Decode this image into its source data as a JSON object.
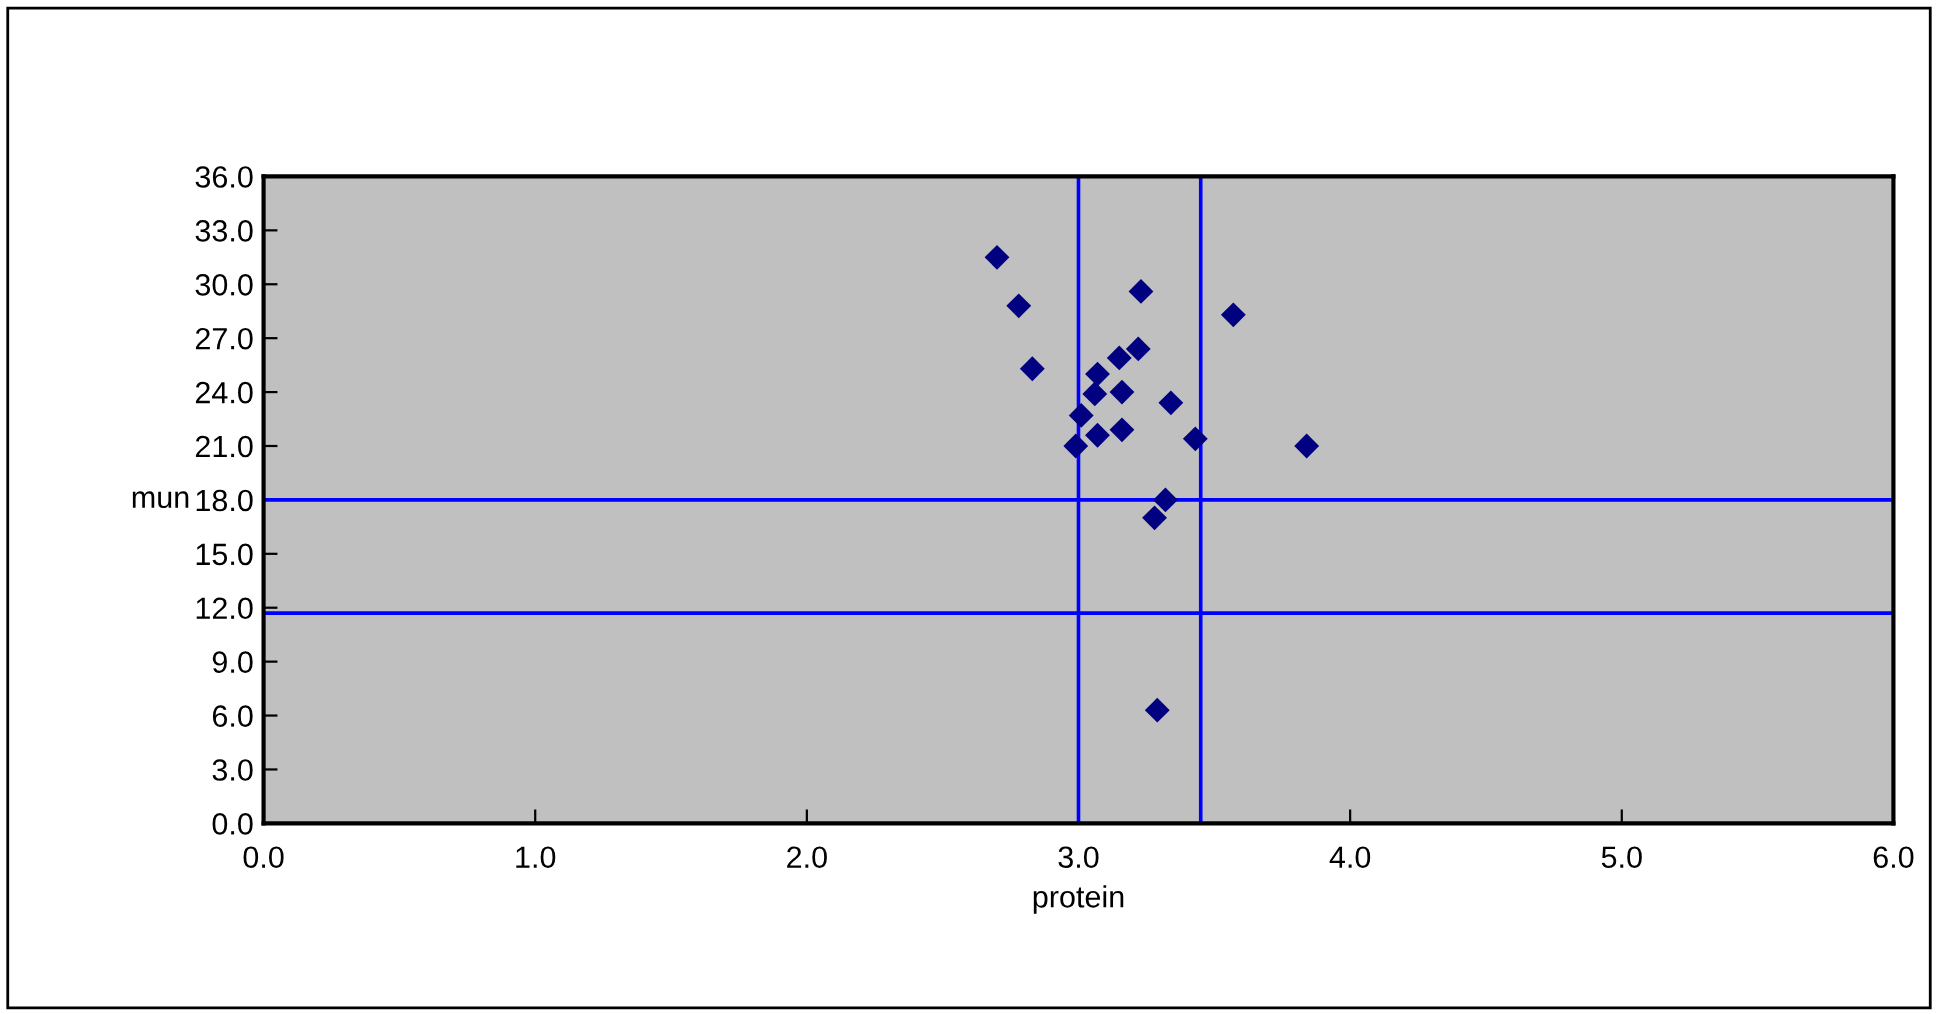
{
  "chart_data": {
    "type": "scatter",
    "xlabel": "protein",
    "ylabel": "mun",
    "x": [
      3.23,
      3.57,
      2.83,
      3.15,
      3.06,
      3.16,
      3.34,
      3.01,
      3.16,
      2.99,
      3.84,
      3.32,
      3.28,
      2.7,
      2.78,
      3.22,
      3.07,
      3.07,
      3.43,
      3.29
    ],
    "series": [
      {
        "color": "#000080",
        "values": [
          29.6,
          28.3,
          25.3,
          25.9,
          23.9,
          24.0,
          23.4,
          22.7,
          21.9,
          21.0,
          21.0,
          18.0,
          17.0,
          31.5,
          28.8,
          26.4,
          25.0,
          21.6,
          21.4,
          6.3
        ]
      }
    ],
    "marker": "diamond",
    "xlim": [
      0,
      6
    ],
    "xticks": [
      {
        "value": 0,
        "label": "0.0"
      },
      {
        "value": 1,
        "label": "1.0"
      },
      {
        "value": 2,
        "label": "2.0"
      },
      {
        "value": 3,
        "label": "3.0"
      },
      {
        "value": 4,
        "label": "4.0"
      },
      {
        "value": 5,
        "label": "5.0"
      },
      {
        "value": 6,
        "label": "6.0"
      }
    ],
    "ylim": [
      0,
      36
    ],
    "yticks": [
      {
        "value": 0,
        "label": "0.0"
      },
      {
        "value": 3,
        "label": "3.0"
      },
      {
        "value": 6,
        "label": "6.0"
      },
      {
        "value": 9,
        "label": "9.0"
      },
      {
        "value": 12,
        "label": "12.0"
      },
      {
        "value": 15,
        "label": "15.0"
      },
      {
        "value": 18,
        "label": "18.0"
      },
      {
        "value": 21,
        "label": "21.0"
      },
      {
        "value": 24,
        "label": "24.0"
      },
      {
        "value": 27,
        "label": "27.0"
      },
      {
        "value": 30,
        "label": "30.0"
      },
      {
        "value": 33,
        "label": "33.0"
      },
      {
        "value": 36,
        "label": "36.0"
      }
    ],
    "ref_lines": [
      {
        "axis": "x",
        "value": 3.0,
        "color": "#0000ff"
      },
      {
        "axis": "x",
        "value": 3.45,
        "color": "#0000ff"
      },
      {
        "axis": "y",
        "value": 18.0,
        "color": "#0000ff"
      },
      {
        "axis": "y",
        "value": 11.7,
        "color": "#0000ff"
      }
    ],
    "grid": false
  }
}
